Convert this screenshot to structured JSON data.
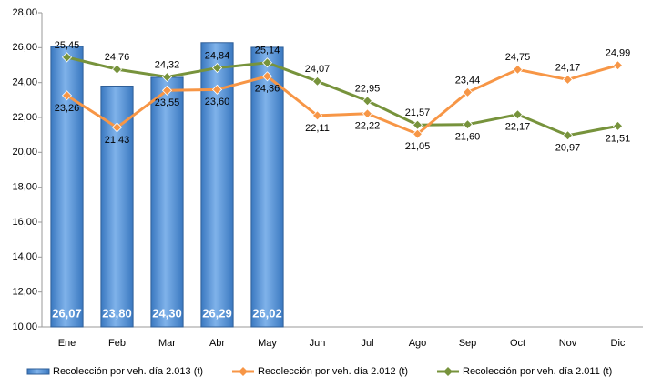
{
  "chart_data": {
    "type": "bar-line",
    "categories": [
      "Ene",
      "Feb",
      "Mar",
      "Abr",
      "May",
      "Jun",
      "Jul",
      "Ago",
      "Sep",
      "Oct",
      "Nov",
      "Dic"
    ],
    "series": [
      {
        "name": "Recolección por veh. día 2.013 (t)",
        "kind": "bar",
        "color": "#4f8fd4",
        "values": [
          26.07,
          23.8,
          24.3,
          26.29,
          26.02,
          null,
          null,
          null,
          null,
          null,
          null,
          null
        ],
        "value_labels": [
          "26,07",
          "23,80",
          "24,30",
          "26,29",
          "26,02",
          null,
          null,
          null,
          null,
          null,
          null,
          null
        ]
      },
      {
        "name": "Recolección por veh. día 2.012 (t)",
        "kind": "line",
        "color": "#f79646",
        "values": [
          23.26,
          21.43,
          23.55,
          23.6,
          24.36,
          22.11,
          22.22,
          21.05,
          23.44,
          24.75,
          24.17,
          24.99
        ],
        "value_labels": [
          "23,26",
          "21,43",
          "23,55",
          "23,60",
          "24,36",
          "22,11",
          "22,22",
          "21,05",
          "23,44",
          "24,75",
          "24,17",
          "24,99"
        ]
      },
      {
        "name": "Recolección por veh. día 2.011 (t)",
        "kind": "line",
        "color": "#77933c",
        "values": [
          25.45,
          24.76,
          24.32,
          24.84,
          25.14,
          24.07,
          22.95,
          21.57,
          21.6,
          22.17,
          20.97,
          21.51
        ],
        "value_labels": [
          "25,45",
          "24,76",
          "24,32",
          "24,84",
          "25,14",
          "24,07",
          "22,95",
          "21,57",
          "21,60",
          "22,17",
          "20,97",
          "21,51"
        ]
      }
    ],
    "ylim": [
      10,
      28
    ],
    "yticks": [
      {
        "value": 10,
        "label": "10,00"
      },
      {
        "value": 12,
        "label": "12,00"
      },
      {
        "value": 14,
        "label": "14,00"
      },
      {
        "value": 16,
        "label": "16,00"
      },
      {
        "value": 18,
        "label": "18,00"
      },
      {
        "value": 20,
        "label": "20,00"
      },
      {
        "value": 22,
        "label": "22,00"
      },
      {
        "value": 24,
        "label": "24,00"
      },
      {
        "value": 26,
        "label": "26,00"
      },
      {
        "value": 28,
        "label": "28,00"
      }
    ],
    "grid": false,
    "legend": "bottom"
  }
}
